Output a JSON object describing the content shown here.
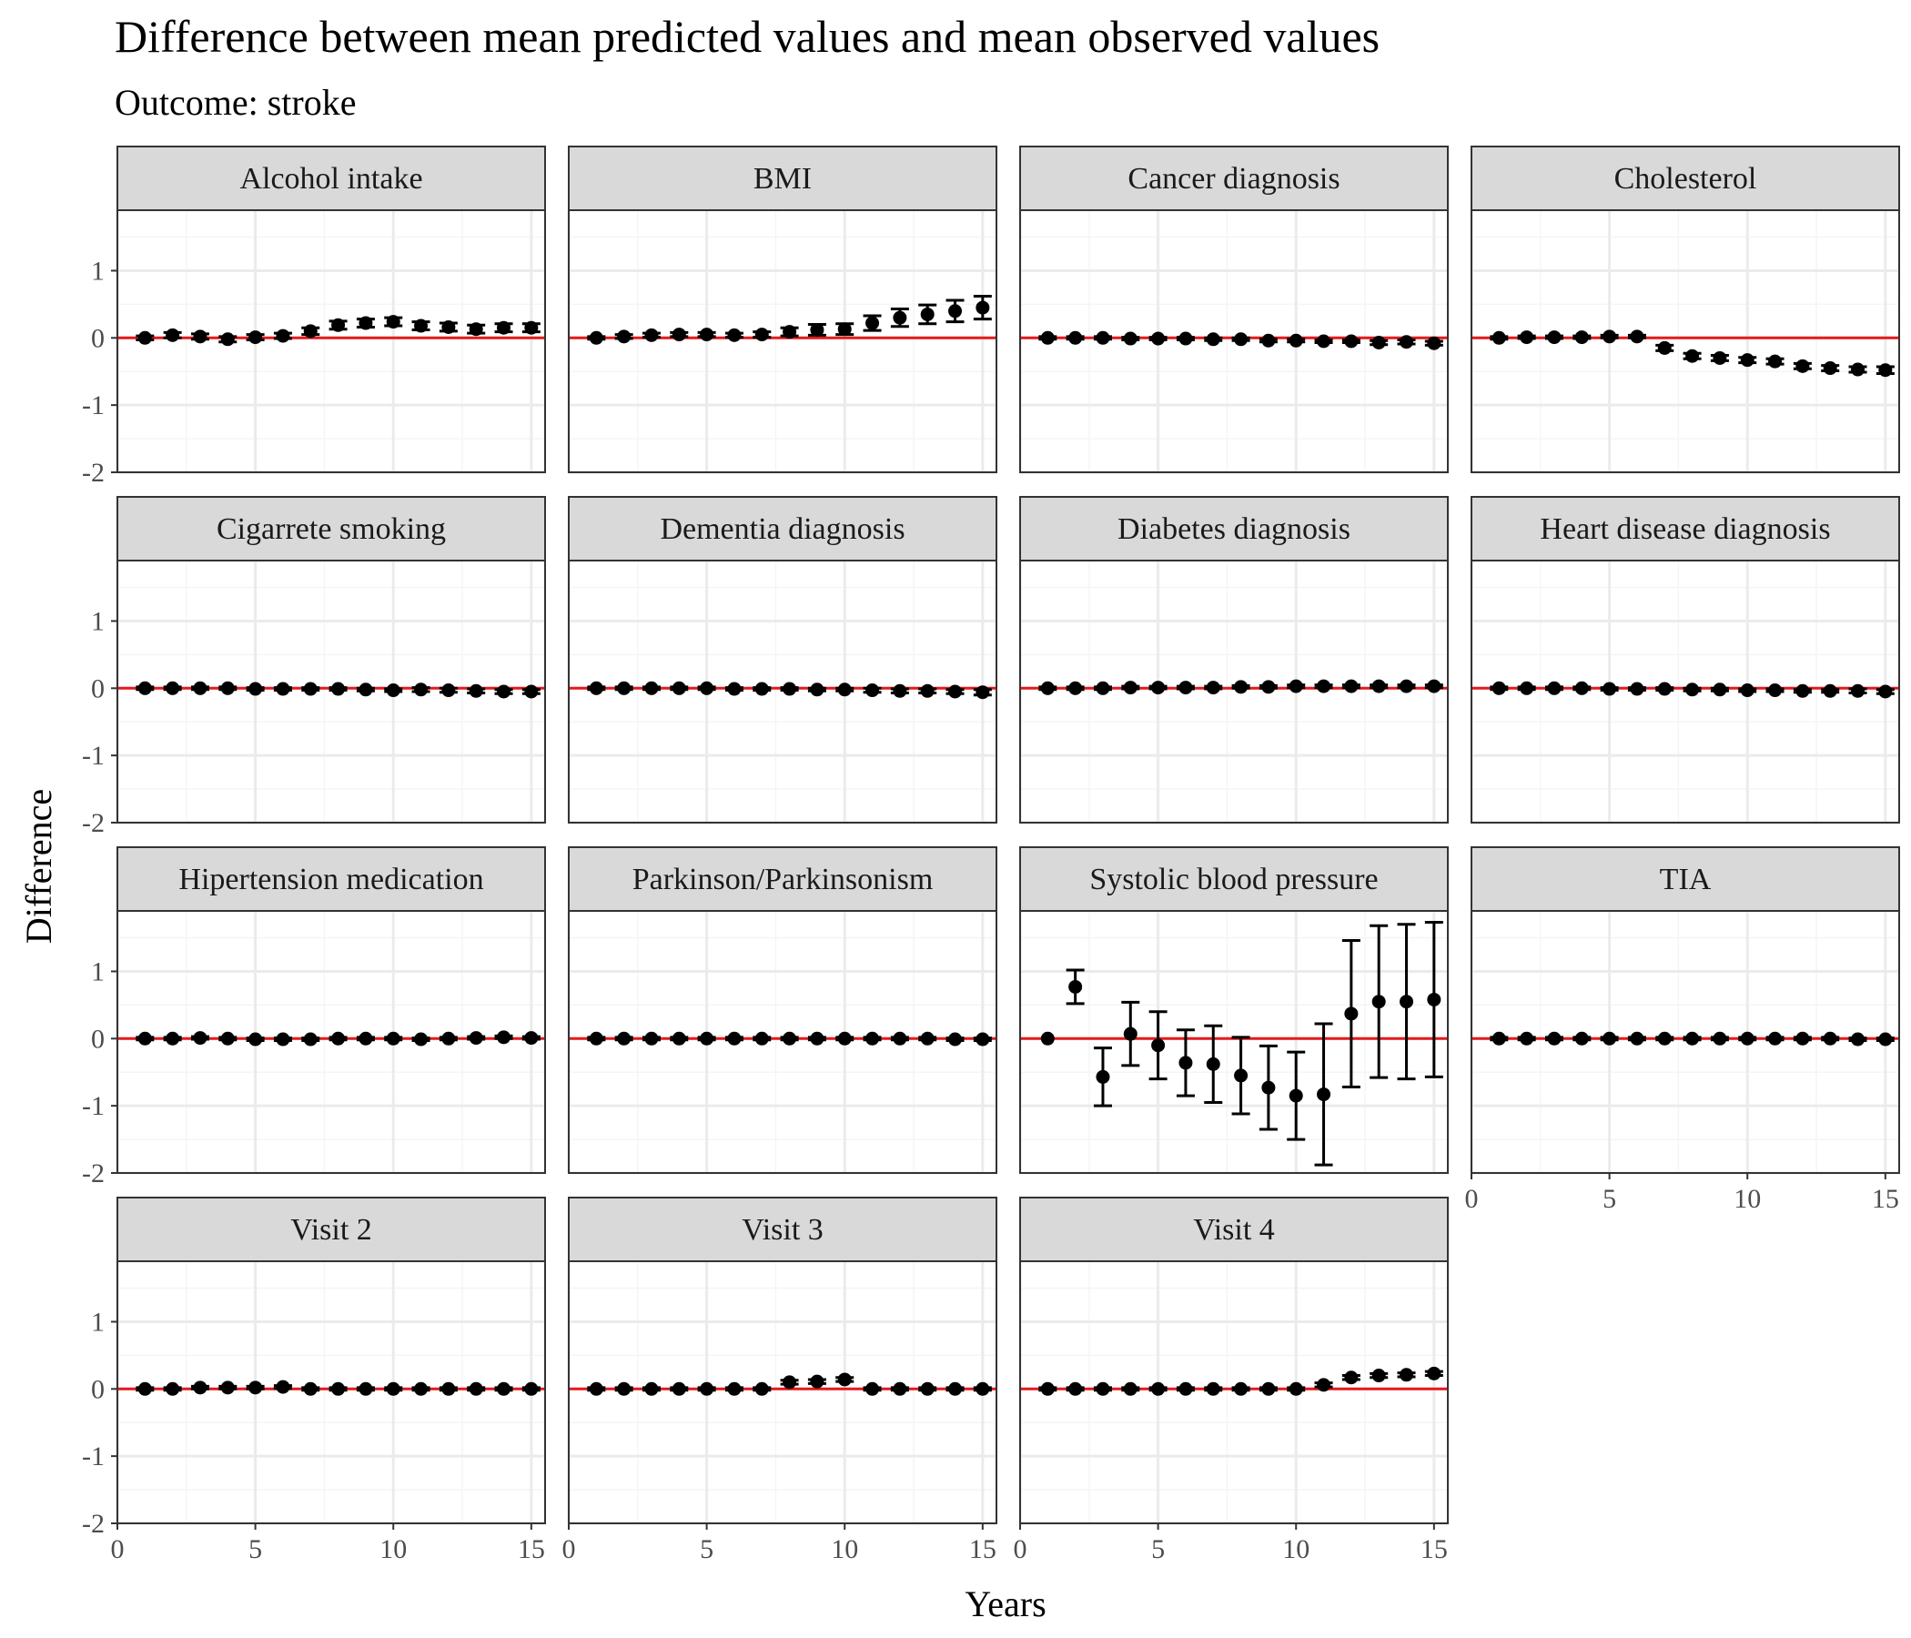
{
  "chart_data": {
    "type": "scatter",
    "title": "Difference between mean predicted values and mean observed values",
    "subtitle": "Outcome: stroke",
    "xlabel": "Years",
    "ylabel": "Difference",
    "xlim": [
      0,
      15.5
    ],
    "ylim": [
      -2,
      1.9
    ],
    "x_ticks": [
      0,
      5,
      10,
      15
    ],
    "y_ticks": [
      -2,
      -1,
      0,
      1
    ],
    "x_tick_labels": [
      "0",
      "5",
      "10",
      "15"
    ],
    "y_tick_labels": [
      "-2",
      "-1",
      "0",
      "1"
    ],
    "reference_line": {
      "y": 0,
      "color": "#e41a1c"
    },
    "grid": true,
    "colors": {
      "points": "#000000",
      "reference": "#e41a1c",
      "strip_bg": "#d9d9d9",
      "panel_border": "#333333",
      "grid_major": "#ebebeb",
      "grid_minor": "#f5f5f5"
    },
    "x": [
      1,
      2,
      3,
      4,
      5,
      6,
      7,
      8,
      9,
      10,
      11,
      12,
      13,
      14,
      15
    ],
    "panels": [
      {
        "name": "Alcohol intake",
        "mean": [
          0.0,
          0.04,
          0.02,
          -0.02,
          0.01,
          0.03,
          0.1,
          0.19,
          0.22,
          0.24,
          0.18,
          0.16,
          0.13,
          0.15,
          0.15
        ],
        "lower": [
          -0.03,
          0.0,
          -0.02,
          -0.06,
          -0.03,
          -0.01,
          0.05,
          0.13,
          0.16,
          0.18,
          0.12,
          0.1,
          0.07,
          0.09,
          0.09
        ],
        "upper": [
          0.03,
          0.08,
          0.06,
          0.02,
          0.05,
          0.07,
          0.15,
          0.25,
          0.28,
          0.3,
          0.24,
          0.22,
          0.19,
          0.21,
          0.21
        ]
      },
      {
        "name": "BMI",
        "mean": [
          0.0,
          0.02,
          0.04,
          0.05,
          0.05,
          0.04,
          0.05,
          0.09,
          0.12,
          0.13,
          0.22,
          0.3,
          0.35,
          0.4,
          0.45
        ],
        "lower": [
          -0.02,
          -0.01,
          0.01,
          0.02,
          0.02,
          0.01,
          0.01,
          0.03,
          0.04,
          0.05,
          0.11,
          0.17,
          0.21,
          0.24,
          0.28
        ],
        "upper": [
          0.02,
          0.05,
          0.07,
          0.08,
          0.08,
          0.07,
          0.09,
          0.15,
          0.2,
          0.21,
          0.33,
          0.43,
          0.49,
          0.56,
          0.62
        ]
      },
      {
        "name": "Cancer diagnosis",
        "mean": [
          0.0,
          0.0,
          0.0,
          -0.01,
          -0.01,
          -0.01,
          -0.02,
          -0.02,
          -0.04,
          -0.04,
          -0.05,
          -0.05,
          -0.07,
          -0.06,
          -0.08
        ],
        "lower": [
          -0.02,
          -0.02,
          -0.02,
          -0.03,
          -0.03,
          -0.03,
          -0.04,
          -0.04,
          -0.06,
          -0.06,
          -0.07,
          -0.07,
          -0.1,
          -0.09,
          -0.11
        ],
        "upper": [
          0.02,
          0.02,
          0.02,
          0.01,
          0.01,
          0.01,
          0.0,
          0.0,
          -0.02,
          -0.02,
          -0.03,
          -0.03,
          -0.04,
          -0.03,
          -0.05
        ]
      },
      {
        "name": "Cholesterol",
        "mean": [
          0.0,
          0.01,
          0.01,
          0.01,
          0.02,
          0.02,
          -0.15,
          -0.27,
          -0.3,
          -0.33,
          -0.35,
          -0.42,
          -0.45,
          -0.47,
          -0.48
        ],
        "lower": [
          -0.02,
          -0.01,
          -0.01,
          -0.01,
          0.0,
          0.0,
          -0.19,
          -0.31,
          -0.34,
          -0.37,
          -0.39,
          -0.46,
          -0.49,
          -0.51,
          -0.53
        ],
        "upper": [
          0.02,
          0.03,
          0.03,
          0.03,
          0.04,
          0.04,
          -0.11,
          -0.23,
          -0.26,
          -0.29,
          -0.31,
          -0.38,
          -0.41,
          -0.43,
          -0.43
        ]
      },
      {
        "name": "Cigarrete smoking",
        "mean": [
          0.0,
          0.0,
          0.0,
          0.0,
          -0.01,
          -0.01,
          -0.01,
          -0.01,
          -0.02,
          -0.03,
          -0.02,
          -0.03,
          -0.04,
          -0.05,
          -0.05
        ],
        "lower": [
          -0.02,
          -0.02,
          -0.02,
          -0.02,
          -0.03,
          -0.03,
          -0.03,
          -0.03,
          -0.04,
          -0.05,
          -0.05,
          -0.06,
          -0.07,
          -0.08,
          -0.08
        ],
        "upper": [
          0.02,
          0.02,
          0.02,
          0.02,
          0.01,
          0.01,
          0.01,
          0.01,
          0.0,
          -0.01,
          0.01,
          0.0,
          -0.01,
          -0.02,
          -0.02
        ]
      },
      {
        "name": "Dementia diagnosis",
        "mean": [
          0.0,
          0.0,
          0.0,
          0.0,
          0.0,
          -0.01,
          -0.01,
          -0.01,
          -0.02,
          -0.02,
          -0.03,
          -0.04,
          -0.04,
          -0.05,
          -0.06
        ],
        "lower": [
          -0.02,
          -0.02,
          -0.02,
          -0.02,
          -0.02,
          -0.03,
          -0.03,
          -0.03,
          -0.04,
          -0.04,
          -0.06,
          -0.07,
          -0.07,
          -0.08,
          -0.1
        ],
        "upper": [
          0.02,
          0.02,
          0.02,
          0.02,
          0.02,
          0.01,
          0.01,
          0.01,
          0.0,
          0.0,
          0.0,
          -0.01,
          -0.01,
          -0.02,
          -0.02
        ]
      },
      {
        "name": "Diabetes diagnosis",
        "mean": [
          0.0,
          0.0,
          0.0,
          0.01,
          0.01,
          0.01,
          0.01,
          0.02,
          0.02,
          0.03,
          0.03,
          0.03,
          0.03,
          0.03,
          0.03
        ],
        "lower": [
          -0.02,
          -0.02,
          -0.02,
          -0.01,
          -0.01,
          -0.01,
          -0.01,
          0.0,
          0.0,
          0.01,
          0.01,
          0.01,
          0.01,
          0.01,
          0.01
        ],
        "upper": [
          0.02,
          0.02,
          0.02,
          0.03,
          0.03,
          0.03,
          0.03,
          0.04,
          0.04,
          0.05,
          0.05,
          0.05,
          0.05,
          0.05,
          0.05
        ]
      },
      {
        "name": "Heart disease diagnosis",
        "mean": [
          0.0,
          0.0,
          0.0,
          0.0,
          -0.01,
          -0.01,
          -0.01,
          -0.02,
          -0.02,
          -0.03,
          -0.03,
          -0.04,
          -0.04,
          -0.04,
          -0.05
        ],
        "lower": [
          -0.02,
          -0.02,
          -0.02,
          -0.02,
          -0.03,
          -0.03,
          -0.03,
          -0.04,
          -0.04,
          -0.05,
          -0.05,
          -0.06,
          -0.06,
          -0.07,
          -0.08
        ],
        "upper": [
          0.02,
          0.02,
          0.02,
          0.02,
          0.01,
          0.01,
          0.01,
          0.0,
          0.0,
          -0.01,
          -0.01,
          -0.02,
          -0.02,
          -0.01,
          -0.02
        ]
      },
      {
        "name": "Hipertension medication",
        "mean": [
          0.0,
          0.0,
          0.01,
          0.0,
          -0.01,
          -0.01,
          -0.01,
          0.0,
          0.0,
          0.0,
          -0.01,
          0.0,
          0.01,
          0.02,
          0.01
        ],
        "lower": [
          -0.02,
          -0.02,
          -0.01,
          -0.02,
          -0.03,
          -0.03,
          -0.03,
          -0.02,
          -0.02,
          -0.02,
          -0.03,
          -0.02,
          -0.01,
          0.0,
          -0.01
        ],
        "upper": [
          0.02,
          0.02,
          0.03,
          0.02,
          0.01,
          0.01,
          0.01,
          0.02,
          0.02,
          0.02,
          0.01,
          0.02,
          0.03,
          0.04,
          0.03
        ]
      },
      {
        "name": "Parkinson/Parkinsonism",
        "mean": [
          0.0,
          0.0,
          0.0,
          0.0,
          0.0,
          0.0,
          0.0,
          0.0,
          0.0,
          0.0,
          0.0,
          0.0,
          0.0,
          -0.01,
          -0.01
        ],
        "lower": [
          -0.02,
          -0.02,
          -0.02,
          -0.02,
          -0.02,
          -0.02,
          -0.02,
          -0.02,
          -0.02,
          -0.02,
          -0.02,
          -0.02,
          -0.02,
          -0.03,
          -0.03
        ],
        "upper": [
          0.02,
          0.02,
          0.02,
          0.02,
          0.02,
          0.02,
          0.02,
          0.02,
          0.02,
          0.02,
          0.02,
          0.02,
          0.02,
          0.01,
          0.01
        ]
      },
      {
        "name": "Systolic blood pressure",
        "mean": [
          0.0,
          0.77,
          -0.57,
          0.07,
          -0.1,
          -0.36,
          -0.38,
          -0.55,
          -0.73,
          -0.85,
          -0.83,
          0.37,
          0.55,
          0.55,
          0.58
        ],
        "lower": [
          0.0,
          0.52,
          -1.0,
          -0.4,
          -0.6,
          -0.85,
          -0.95,
          -1.12,
          -1.35,
          -1.5,
          -1.88,
          -0.72,
          -0.58,
          -0.6,
          -0.57
        ],
        "upper": [
          0.0,
          1.02,
          -0.14,
          0.54,
          0.4,
          0.13,
          0.19,
          0.02,
          -0.11,
          -0.2,
          0.22,
          1.46,
          1.68,
          1.7,
          1.73
        ]
      },
      {
        "name": "TIA",
        "mean": [
          0.0,
          0.0,
          0.0,
          0.0,
          0.0,
          0.0,
          0.0,
          0.0,
          0.0,
          0.0,
          0.0,
          0.0,
          0.0,
          -0.01,
          -0.01
        ],
        "lower": [
          -0.02,
          -0.02,
          -0.02,
          -0.02,
          -0.02,
          -0.02,
          -0.02,
          -0.02,
          -0.02,
          -0.02,
          -0.02,
          -0.02,
          -0.02,
          -0.03,
          -0.03
        ],
        "upper": [
          0.02,
          0.02,
          0.02,
          0.02,
          0.02,
          0.02,
          0.02,
          0.02,
          0.02,
          0.02,
          0.02,
          0.02,
          0.02,
          0.01,
          0.01
        ]
      },
      {
        "name": "Visit 2",
        "mean": [
          0.0,
          0.0,
          0.02,
          0.02,
          0.02,
          0.03,
          0.0,
          0.0,
          0.0,
          0.0,
          0.0,
          0.0,
          0.0,
          0.0,
          0.0
        ],
        "lower": [
          -0.02,
          -0.02,
          0.0,
          0.0,
          0.0,
          0.01,
          -0.02,
          -0.02,
          -0.02,
          -0.02,
          -0.02,
          -0.02,
          -0.02,
          -0.02,
          -0.02
        ],
        "upper": [
          0.02,
          0.02,
          0.04,
          0.04,
          0.04,
          0.05,
          0.02,
          0.02,
          0.02,
          0.02,
          0.02,
          0.02,
          0.02,
          0.02,
          0.02
        ]
      },
      {
        "name": "Visit 3",
        "mean": [
          0.0,
          0.0,
          0.0,
          0.0,
          0.0,
          0.0,
          0.0,
          0.1,
          0.11,
          0.14,
          0.0,
          0.0,
          0.0,
          0.0,
          0.0
        ],
        "lower": [
          -0.02,
          -0.02,
          -0.02,
          -0.02,
          -0.02,
          -0.02,
          -0.02,
          0.07,
          0.08,
          0.11,
          -0.02,
          -0.02,
          -0.02,
          -0.02,
          -0.02
        ],
        "upper": [
          0.02,
          0.02,
          0.02,
          0.02,
          0.02,
          0.02,
          0.02,
          0.13,
          0.14,
          0.17,
          0.02,
          0.02,
          0.02,
          0.02,
          0.02
        ]
      },
      {
        "name": "Visit 4",
        "mean": [
          0.0,
          0.0,
          0.0,
          0.0,
          0.0,
          0.0,
          0.0,
          0.0,
          0.0,
          0.0,
          0.06,
          0.17,
          0.2,
          0.21,
          0.23
        ],
        "lower": [
          -0.02,
          -0.02,
          -0.02,
          -0.02,
          -0.02,
          -0.02,
          -0.02,
          -0.02,
          -0.02,
          -0.02,
          0.03,
          0.14,
          0.17,
          0.18,
          0.2
        ],
        "upper": [
          0.02,
          0.02,
          0.02,
          0.02,
          0.02,
          0.02,
          0.02,
          0.02,
          0.02,
          0.02,
          0.09,
          0.2,
          0.23,
          0.24,
          0.26
        ]
      }
    ]
  }
}
